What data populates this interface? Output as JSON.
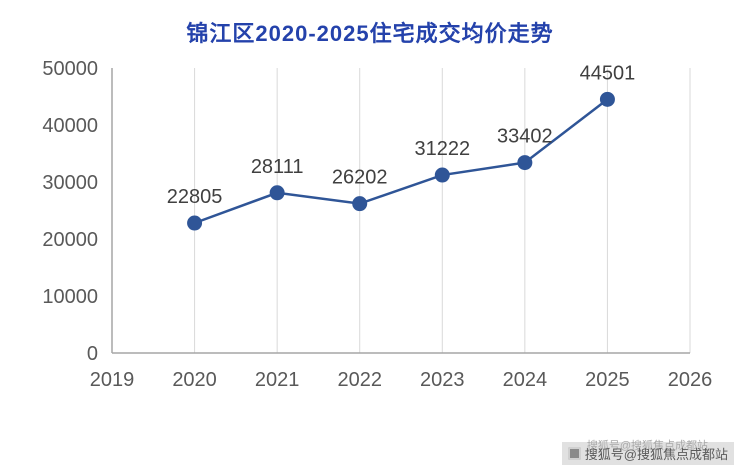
{
  "title": "锦江区2020-2025住宅成交均价走势",
  "watermark": {
    "text": "搜狐号@搜狐焦点成都站",
    "icon": "sohu-logo-icon"
  },
  "colors": {
    "title": "#2442ab",
    "line": "#2f5597",
    "marker": "#2f5597",
    "grid": "#d9d9d9",
    "axis": "#a6a6a6",
    "tick_label": "#595959",
    "data_label": "#404040"
  },
  "chart_data": {
    "type": "line",
    "title": "锦江区2020-2025住宅成交均价走势",
    "x": [
      2020,
      2021,
      2022,
      2023,
      2024,
      2025
    ],
    "values": [
      22805,
      28111,
      26202,
      31222,
      33402,
      44501
    ],
    "xlabel": "",
    "ylabel": "",
    "xlim": [
      2019,
      2026
    ],
    "ylim": [
      0,
      50000
    ],
    "x_ticks": [
      2019,
      2020,
      2021,
      2022,
      2023,
      2024,
      2025,
      2026
    ],
    "y_ticks": [
      0,
      10000,
      20000,
      30000,
      40000,
      50000
    ],
    "grid": "vertical",
    "legend": "none",
    "marker": "circle",
    "data_labels": true
  }
}
